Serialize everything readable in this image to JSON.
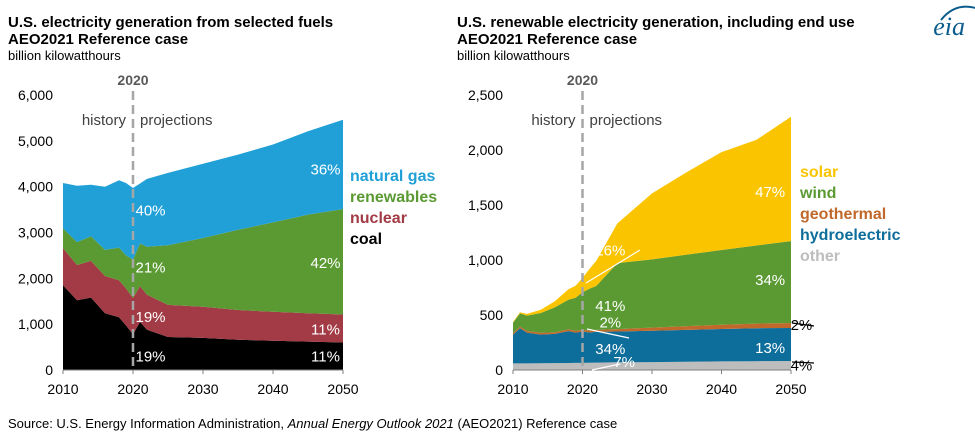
{
  "logo": "eia",
  "source": {
    "prefix": "Source: U.S. Energy Information Administration, ",
    "italic": "Annual Energy Outlook 2021",
    "suffix": " (AEO2021) Reference case"
  },
  "colors": {
    "natural_gas": "#21a0d8",
    "renewables": "#5b9a33",
    "nuclear": "#a23b45",
    "coal": "#000000",
    "solar": "#fbc400",
    "wind": "#5b9a33",
    "geothermal": "#c0692b",
    "hydroelectric": "#0e6e9b",
    "other": "#bdbdbd"
  },
  "chart_data": [
    {
      "type": "area",
      "stacked": true,
      "title": "U.S. electricity generation from selected fuels",
      "subtitle": "AEO2021 Reference case",
      "ylabel": "billion kilowatthours",
      "xlim": [
        2010,
        2050
      ],
      "ylim": [
        0,
        6000
      ],
      "xticks": [
        2010,
        2020,
        2030,
        2040,
        2050
      ],
      "yticks": [
        0,
        1000,
        2000,
        3000,
        4000,
        5000,
        6000
      ],
      "ytick_labels": [
        "0",
        "1,000",
        "2,000",
        "3,000",
        "4,000",
        "5,000",
        "6,000"
      ],
      "divider": {
        "year": 2020,
        "label": "2020",
        "left_label": "history",
        "right_label": "projections"
      },
      "x": [
        2010,
        2012,
        2014,
        2016,
        2018,
        2019,
        2020,
        2021,
        2022,
        2025,
        2030,
        2035,
        2040,
        2045,
        2050
      ],
      "series": [
        {
          "name": "coal",
          "color_key": "coal",
          "values": [
            1850,
            1520,
            1580,
            1240,
            1150,
            970,
            780,
            1050,
            880,
            720,
            700,
            660,
            640,
            620,
            600
          ]
        },
        {
          "name": "nuclear",
          "color_key": "nuclear",
          "values": [
            810,
            770,
            800,
            810,
            810,
            810,
            790,
            780,
            760,
            700,
            680,
            650,
            630,
            620,
            610
          ]
        },
        {
          "name": "renewables",
          "color_key": "renewables",
          "values": [
            430,
            500,
            540,
            570,
            710,
            720,
            840,
            930,
            1050,
            1300,
            1500,
            1750,
            1950,
            2150,
            2300
          ]
        },
        {
          "name": "natural gas",
          "color_key": "natural_gas",
          "values": [
            990,
            1230,
            1120,
            1380,
            1470,
            1580,
            1560,
            1310,
            1480,
            1580,
            1620,
            1640,
            1700,
            1820,
            1950
          ]
        }
      ],
      "legend": [
        {
          "label": "natural gas",
          "color_key": "natural_gas"
        },
        {
          "label": "renewables",
          "color_key": "renewables"
        },
        {
          "label": "nuclear",
          "color_key": "nuclear"
        },
        {
          "label": "coal",
          "color_key": "coal"
        }
      ],
      "annotations": [
        {
          "text": "40%",
          "x": 2022.5,
          "y": 3480,
          "color": "#ffffff"
        },
        {
          "text": "21%",
          "x": 2022.5,
          "y": 2240,
          "color": "#ffffff"
        },
        {
          "text": "19%",
          "x": 2022.5,
          "y": 1160,
          "color": "#ffffff"
        },
        {
          "text": "19%",
          "x": 2022.5,
          "y": 300,
          "color": "#ffffff"
        },
        {
          "text": "36%",
          "x": 2047.5,
          "y": 4380,
          "color": "#ffffff"
        },
        {
          "text": "42%",
          "x": 2047.5,
          "y": 2340,
          "color": "#ffffff"
        },
        {
          "text": "11%",
          "x": 2047.5,
          "y": 880,
          "color": "#ffffff"
        },
        {
          "text": "11%",
          "x": 2047.5,
          "y": 300,
          "color": "#ffffff"
        }
      ]
    },
    {
      "type": "area",
      "stacked": true,
      "title": "U.S. renewable electricity generation, including end use",
      "subtitle": "AEO2021 Reference case",
      "ylabel": "billion kilowatthours",
      "xlim": [
        2010,
        2050
      ],
      "ylim": [
        0,
        2500
      ],
      "xticks": [
        2010,
        2020,
        2030,
        2040,
        2050
      ],
      "yticks": [
        0,
        500,
        1000,
        1500,
        2000,
        2500
      ],
      "ytick_labels": [
        "0",
        "500",
        "1,000",
        "1,500",
        "2,000",
        "2,500"
      ],
      "divider": {
        "year": 2020,
        "label": "2020",
        "left_label": "history",
        "right_label": "projections"
      },
      "x": [
        2010,
        2011,
        2012,
        2014,
        2016,
        2018,
        2019,
        2020,
        2021,
        2022,
        2025,
        2030,
        2035,
        2040,
        2045,
        2050
      ],
      "series": [
        {
          "name": "other",
          "color_key": "other",
          "values": [
            60,
            60,
            60,
            62,
            63,
            64,
            65,
            65,
            66,
            67,
            70,
            72,
            75,
            78,
            80,
            82
          ]
        },
        {
          "name": "hydroelectric",
          "color_key": "hydroelectric",
          "values": [
            260,
            320,
            280,
            260,
            265,
            290,
            275,
            285,
            275,
            280,
            280,
            285,
            290,
            295,
            300,
            300
          ]
        },
        {
          "name": "geothermal",
          "color_key": "geothermal",
          "values": [
            15,
            15,
            15,
            16,
            16,
            16,
            16,
            16,
            17,
            18,
            22,
            28,
            34,
            38,
            42,
            45
          ]
        },
        {
          "name": "wind",
          "color_key": "wind",
          "values": [
            95,
            120,
            140,
            180,
            225,
            270,
            300,
            340,
            380,
            400,
            600,
            620,
            650,
            680,
            710,
            745
          ]
        },
        {
          "name": "solar",
          "color_key": "solar",
          "values": [
            5,
            10,
            15,
            30,
            55,
            95,
            110,
            130,
            180,
            230,
            360,
            600,
            750,
            890,
            960,
            1130
          ]
        }
      ],
      "legend": [
        {
          "label": "solar",
          "color_key": "solar"
        },
        {
          "label": "wind",
          "color_key": "wind"
        },
        {
          "label": "geothermal",
          "color_key": "geothermal"
        },
        {
          "label": "hydroelectric",
          "color_key": "hydroelectric"
        },
        {
          "label": "other",
          "color_key": "other"
        }
      ],
      "annotations": [
        {
          "text": "16%",
          "x": 2024,
          "y": 1085,
          "color": "#ffffff"
        },
        {
          "text": "41%",
          "x": 2024,
          "y": 580,
          "color": "#ffffff"
        },
        {
          "text": "2%",
          "x": 2024,
          "y": 430,
          "color": "#ffffff"
        },
        {
          "text": "34%",
          "x": 2024,
          "y": 190,
          "color": "#ffffff"
        },
        {
          "text": "7%",
          "x": 2026,
          "y": 75,
          "color": "#ffffff"
        },
        {
          "text": "47%",
          "x": 2047,
          "y": 1620,
          "color": "#ffffff"
        },
        {
          "text": "34%",
          "x": 2047,
          "y": 820,
          "color": "#ffffff"
        },
        {
          "text": "13%",
          "x": 2047,
          "y": 200,
          "color": "#ffffff"
        },
        {
          "text": "2%",
          "x": 2051.5,
          "y": 410,
          "color": "#000000"
        },
        {
          "text": "4%",
          "x": 2051.5,
          "y": 40,
          "color": "#000000"
        }
      ]
    }
  ]
}
